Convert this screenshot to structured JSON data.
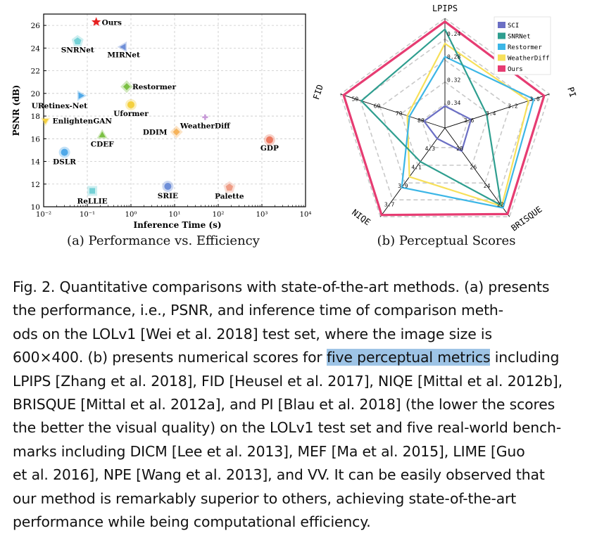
{
  "colors": {
    "SCI": "#6b6fc4",
    "SNRNet": "#2e9e8f",
    "Restormer": "#3cb6e6",
    "WeatherDiff": "#f7e05a",
    "Ours": "#e63c72",
    "highlight": "#9ec4e6"
  },
  "chart_data": [
    {
      "type": "scatter",
      "title": "(a) Performance vs. Efficiency",
      "xlabel": "Inference Time (s)",
      "ylabel": "PSNR (dB)",
      "x_scale": "log",
      "xlim": [
        0.01,
        10000
      ],
      "ylim": [
        10,
        27
      ],
      "x_ticks": [
        0.01,
        0.1,
        1,
        10,
        100,
        1000,
        10000
      ],
      "x_tick_labels": [
        "10⁻²",
        "10⁻¹",
        "10⁰",
        "10¹",
        "10²",
        "10³",
        "10⁴"
      ],
      "y_ticks": [
        10,
        12,
        14,
        16,
        18,
        20,
        22,
        24,
        26
      ],
      "grid": true,
      "points": [
        {
          "label": "Ours",
          "x": 0.16,
          "y": 26.3,
          "color": "#e62121",
          "marker": "star"
        },
        {
          "label": "SNRNet",
          "x": 0.06,
          "y": 24.6,
          "color": "#74d1d6",
          "marker": "pentagon"
        },
        {
          "label": "MIRNet",
          "x": 0.68,
          "y": 24.1,
          "color": "#6f8fd8",
          "marker": "triangle-left"
        },
        {
          "label": "Restormer",
          "x": 0.8,
          "y": 20.6,
          "color": "#7bc043",
          "marker": "diamond"
        },
        {
          "label": "URetinex-Net",
          "x": 0.07,
          "y": 19.8,
          "color": "#4fa8e8",
          "marker": "triangle-right"
        },
        {
          "label": "Uformer",
          "x": 1.0,
          "y": 19.0,
          "color": "#f4d03f",
          "marker": "circle"
        },
        {
          "label": "EnlightenGAN",
          "x": 0.011,
          "y": 17.6,
          "color": "#f4d03f",
          "marker": "triangle-down"
        },
        {
          "label": "WeatherDiff",
          "x": 50,
          "y": 17.9,
          "color": "#c89bd8",
          "marker": "plus"
        },
        {
          "label": "DDIM",
          "x": 11,
          "y": 16.6,
          "color": "#f6b35b",
          "marker": "diamond"
        },
        {
          "label": "CDEF",
          "x": 0.22,
          "y": 16.3,
          "color": "#7bc043",
          "marker": "triangle-up"
        },
        {
          "label": "GDP",
          "x": 1500,
          "y": 15.9,
          "color": "#ec7a62",
          "marker": "circle"
        },
        {
          "label": "DSLR",
          "x": 0.03,
          "y": 14.8,
          "color": "#4fa8e8",
          "marker": "circle"
        },
        {
          "label": "SRIE",
          "x": 7,
          "y": 11.8,
          "color": "#6f8fd8",
          "marker": "circle"
        },
        {
          "label": "Palette",
          "x": 180,
          "y": 11.7,
          "color": "#ef9d86",
          "marker": "pentagon"
        },
        {
          "label": "ReLLIE",
          "x": 0.13,
          "y": 11.4,
          "color": "#74d1d6",
          "marker": "square"
        }
      ]
    },
    {
      "type": "radar",
      "title": "(b) Perceptual Scores",
      "axes": [
        "LPIPS",
        "PI",
        "BRISQUE",
        "NIQE",
        "FID"
      ],
      "axis_ticks": [
        [
          "0.34",
          "0.32",
          "0.28",
          "0.24"
        ],
        [
          "3.6",
          "3.4",
          "3.2",
          "3.0"
        ],
        [
          "28",
          "26",
          "24",
          "22"
        ],
        [
          "4.3",
          "4.1",
          "3.9",
          "3.7"
        ],
        [
          "80",
          "70",
          "60",
          "50"
        ]
      ],
      "legend_position": "top-right",
      "series": [
        {
          "name": "SCI",
          "color": "#6b6fc4",
          "values": [
            0.2,
            0.25,
            0.26,
            0.12,
            0.2
          ]
        },
        {
          "name": "SNRNet",
          "color": "#2e9e8f",
          "values": [
            0.9,
            0.4,
            0.87,
            0.38,
            0.8
          ]
        },
        {
          "name": "Restormer",
          "color": "#3cb6e6",
          "values": [
            0.65,
            0.85,
            0.9,
            0.67,
            0.34
          ]
        },
        {
          "name": "WeatherDiff",
          "color": "#f7e05a",
          "values": [
            0.77,
            0.8,
            0.88,
            0.55,
            0.36
          ]
        },
        {
          "name": "Ours",
          "color": "#e63c72",
          "values": [
            0.97,
            0.95,
            0.97,
            0.98,
            0.97
          ]
        }
      ]
    }
  ],
  "caption": {
    "lines": [
      "Fig. 2.  Quantitative comparisons with state-of-the-art methods. (a) presents",
      "the performance, i.e., PSNR, and inference time of comparison meth-",
      "ods on the LOLv1 [Wei et al. 2018] test set, where the image size is",
      "600×400. (b) presents numerical scores for ",
      "five perceptual metrics",
      " including",
      "LPIPS [Zhang et al. 2018], FID [Heusel et al. 2017], NIQE [Mittal et al. 2012b],",
      "BRISQUE [Mittal et al. 2012a], and PI [Blau et al. 2018] (the lower the scores",
      "the better the visual quality) on the LOLv1 test set and five real-world bench-",
      "marks including DICM [Lee et al. 2013], MEF [Ma et al. 2015], LIME [Guo",
      "et al. 2016], NPE [Wang et al. 2013], and VV. It can be easily observed that",
      "our method is remarkably superior to others, achieving state-of-the-art",
      "performance while being computational efficiency."
    ]
  }
}
